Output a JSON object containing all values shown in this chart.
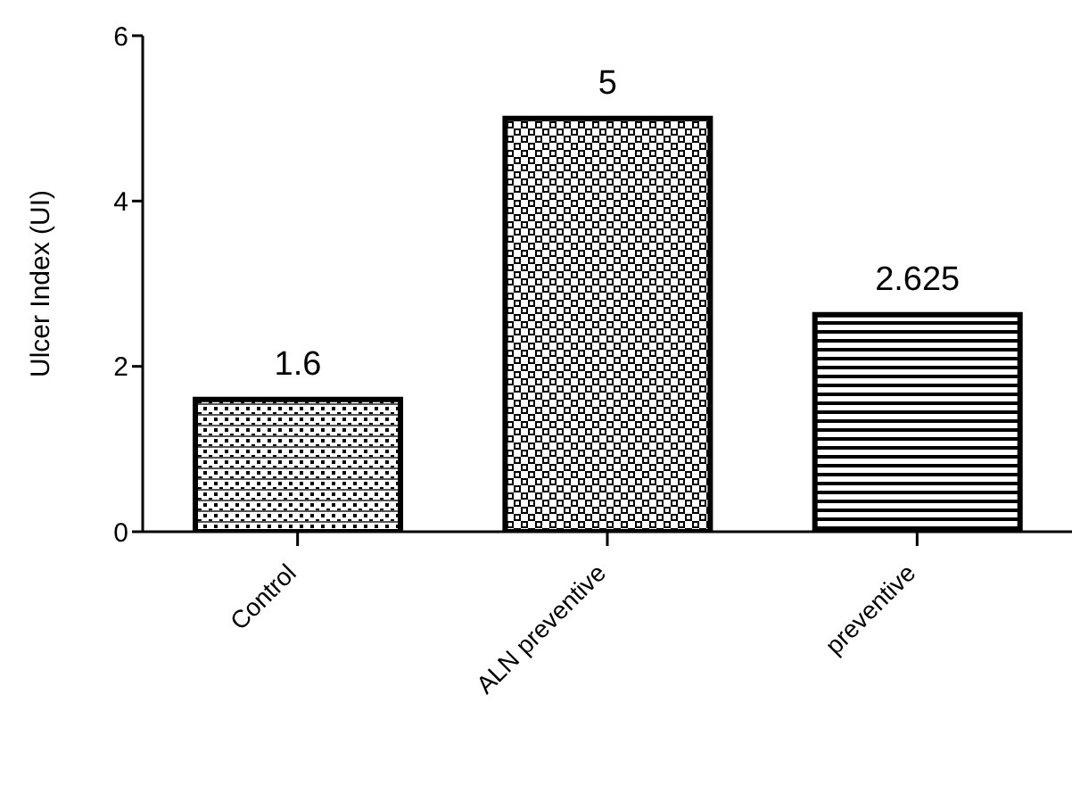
{
  "chart_data": {
    "type": "bar",
    "ylabel": "Ulcer Index (UI)",
    "categories": [
      "Control",
      "ALN preventive",
      "preventive"
    ],
    "values": [
      1.6,
      5,
      2.625
    ],
    "ylim": [
      0,
      6
    ],
    "yticks": [
      0,
      2,
      4,
      6
    ],
    "grid": false,
    "data_labels": true
  }
}
